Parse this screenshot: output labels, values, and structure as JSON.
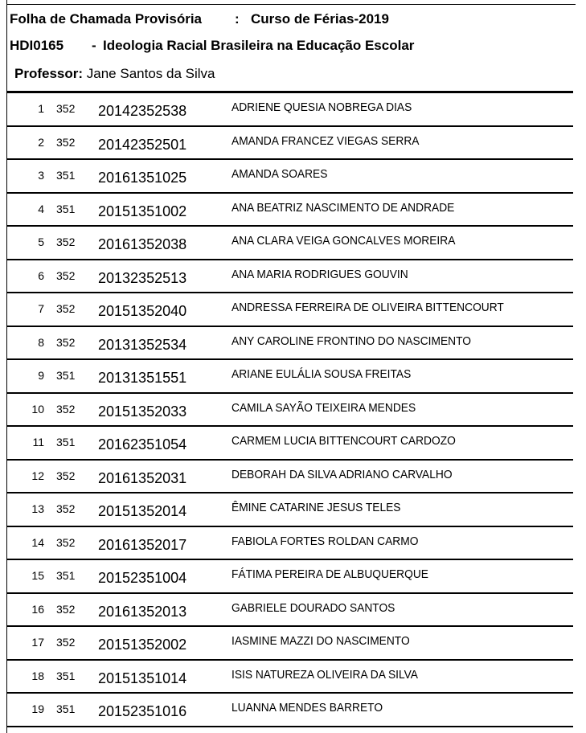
{
  "header": {
    "title": "Folha de Chamada Provisória",
    "separator": ":",
    "course": "Curso de Férias-2019",
    "code": "HDI0165",
    "dash": "-",
    "subject": "Ideologia Racial Brasileira na Educação Escolar",
    "professor_label": "Professor:",
    "professor": "Jane Santos da Silva"
  },
  "students": [
    {
      "n": "1",
      "t": "352",
      "m": "20142352538",
      "name": "ADRIENE QUESIA NOBREGA DIAS"
    },
    {
      "n": "2",
      "t": "352",
      "m": "20142352501",
      "name": "AMANDA FRANCEZ VIEGAS SERRA"
    },
    {
      "n": "3",
      "t": "351",
      "m": "20161351025",
      "name": "AMANDA SOARES"
    },
    {
      "n": "4",
      "t": "351",
      "m": "20151351002",
      "name": "ANA BEATRIZ NASCIMENTO DE ANDRADE"
    },
    {
      "n": "5",
      "t": "352",
      "m": "20161352038",
      "name": "ANA CLARA VEIGA GONCALVES MOREIRA"
    },
    {
      "n": "6",
      "t": "352",
      "m": "20132352513",
      "name": "ANA MARIA RODRIGUES GOUVIN"
    },
    {
      "n": "7",
      "t": "352",
      "m": "20151352040",
      "name": "ANDRESSA FERREIRA DE OLIVEIRA BITTENCOURT"
    },
    {
      "n": "8",
      "t": "352",
      "m": "20131352534",
      "name": "ANY CAROLINE FRONTINO DO NASCIMENTO"
    },
    {
      "n": "9",
      "t": "351",
      "m": "20131351551",
      "name": "ARIANE EULÁLIA SOUSA FREITAS"
    },
    {
      "n": "10",
      "t": "352",
      "m": "20151352033",
      "name": "CAMILA SAYÃO TEIXEIRA MENDES"
    },
    {
      "n": "11",
      "t": "351",
      "m": "20162351054",
      "name": "CARMEM LUCIA BITTENCOURT CARDOZO"
    },
    {
      "n": "12",
      "t": "352",
      "m": "20161352031",
      "name": "DEBORAH DA SILVA ADRIANO CARVALHO"
    },
    {
      "n": "13",
      "t": "352",
      "m": "20151352014",
      "name": "ÊMINE CATARINE JESUS TELES"
    },
    {
      "n": "14",
      "t": "352",
      "m": "20161352017",
      "name": "FABIOLA FORTES ROLDAN CARMO"
    },
    {
      "n": "15",
      "t": "351",
      "m": "20152351004",
      "name": "FÁTIMA PEREIRA DE ALBUQUERQUE"
    },
    {
      "n": "16",
      "t": "352",
      "m": "20161352013",
      "name": "GABRIELE DOURADO SANTOS"
    },
    {
      "n": "17",
      "t": "352",
      "m": "20151352002",
      "name": "IASMINE MAZZI DO NASCIMENTO"
    },
    {
      "n": "18",
      "t": "351",
      "m": "20151351014",
      "name": "ISIS NATUREZA OLIVEIRA DA SILVA"
    },
    {
      "n": "19",
      "t": "351",
      "m": "20152351016",
      "name": "LUANNA MENDES BARRETO"
    }
  ]
}
